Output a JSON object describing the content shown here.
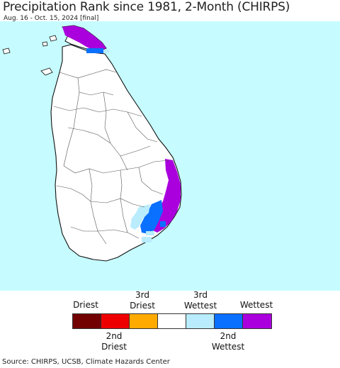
{
  "title": "Precipitation Rank since 1981, 2-Month (CHIRPS)",
  "subtitle": "Aug. 16 - Oct. 15, 2024 [final]",
  "source": "Source: CHIRPS, UCSB, Climate Hazards Center",
  "colors": {
    "ocean": "#c6fcff",
    "land": "#ffffff",
    "border": "#555555",
    "coast": "#111111"
  },
  "legend": {
    "top_labels": [
      {
        "line1": "",
        "line2": "Driest"
      },
      {
        "line1": "3rd",
        "line2": "Driest"
      },
      {
        "line1": "3rd",
        "line2": "Wettest"
      },
      {
        "line1": "",
        "line2": "Wettest"
      }
    ],
    "bottom_labels": [
      {
        "line1": "2nd",
        "line2": "Driest"
      },
      {
        "line1": "2nd",
        "line2": "Wettest"
      }
    ],
    "swatches": [
      "#720000",
      "#ee0000",
      "#ffaa00",
      "#ffffff",
      "#b9ecfc",
      "#0a70ff",
      "#aa00dd"
    ]
  }
}
